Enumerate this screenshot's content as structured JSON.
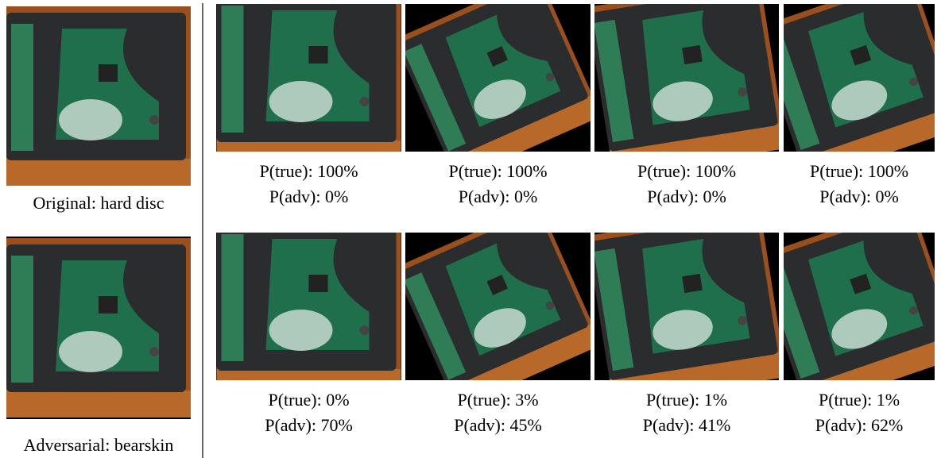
{
  "original": {
    "caption": "Original: hard disc"
  },
  "adversarial": {
    "caption": "Adversarial: bearskin"
  },
  "rows": [
    {
      "cells": [
        {
          "p_true": "P(true): 100%",
          "p_adv": "P(adv): 0%"
        },
        {
          "p_true": "P(true): 100%",
          "p_adv": "P(adv): 0%"
        },
        {
          "p_true": "P(true): 100%",
          "p_adv": "P(adv): 0%"
        },
        {
          "p_true": "P(true): 100%",
          "p_adv": "P(adv): 0%"
        }
      ]
    },
    {
      "cells": [
        {
          "p_true": "P(true): 0%",
          "p_adv": "P(adv): 70%"
        },
        {
          "p_true": "P(true): 3%",
          "p_adv": "P(adv): 45%"
        },
        {
          "p_true": "P(true): 1%",
          "p_adv": "P(adv): 41%"
        },
        {
          "p_true": "P(true): 1%",
          "p_adv": "P(adv): 62%"
        }
      ]
    }
  ]
}
